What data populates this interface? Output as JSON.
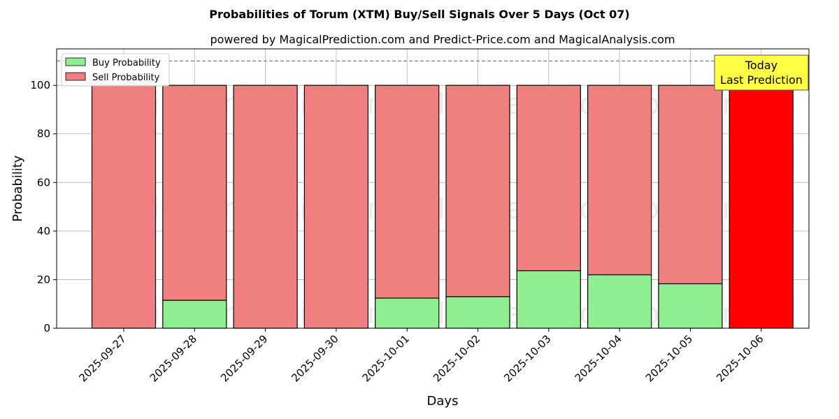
{
  "title": "Probabilities of Torum (XTM) Buy/Sell Signals Over 5 Days (Oct 07)",
  "subtitle": "powered by MagicalPrediction.com and Predict-Price.com and MagicalAnalysis.com",
  "watermarks": [
    "MagicalAnalysis.com",
    "MagicalPrediction.com"
  ],
  "annotation": {
    "line1": "Today",
    "line2": "Last Prediction",
    "color": "#ffff44"
  },
  "legend": {
    "placement": "upper-left",
    "buy_label": "Buy Probability",
    "sell_label": "Sell Probability"
  },
  "colors": {
    "buy": "#90ee90",
    "sell": "#f08080",
    "last": "#ff0000",
    "reference_line": "#808080"
  },
  "chart_data": {
    "type": "bar",
    "stacked": true,
    "xlabel": "Days",
    "ylabel": "Probability",
    "ylim": [
      0,
      115
    ],
    "yticks": [
      0,
      20,
      40,
      60,
      80,
      100
    ],
    "grid": true,
    "reference_line_y": 110,
    "categories": [
      "2025-09-27",
      "2025-09-28",
      "2025-09-29",
      "2025-09-30",
      "2025-10-01",
      "2025-10-02",
      "2025-10-03",
      "2025-10-04",
      "2025-10-05",
      "2025-10-06"
    ],
    "series": [
      {
        "name": "Buy Probability",
        "values": [
          0,
          11.5,
          0,
          0,
          12.4,
          13,
          23.7,
          22,
          18.3,
          0
        ]
      },
      {
        "name": "Sell Probability",
        "values": [
          100,
          88.5,
          100,
          100,
          87.6,
          87,
          76.3,
          78,
          81.7,
          100
        ]
      }
    ],
    "highlight_last": true
  }
}
